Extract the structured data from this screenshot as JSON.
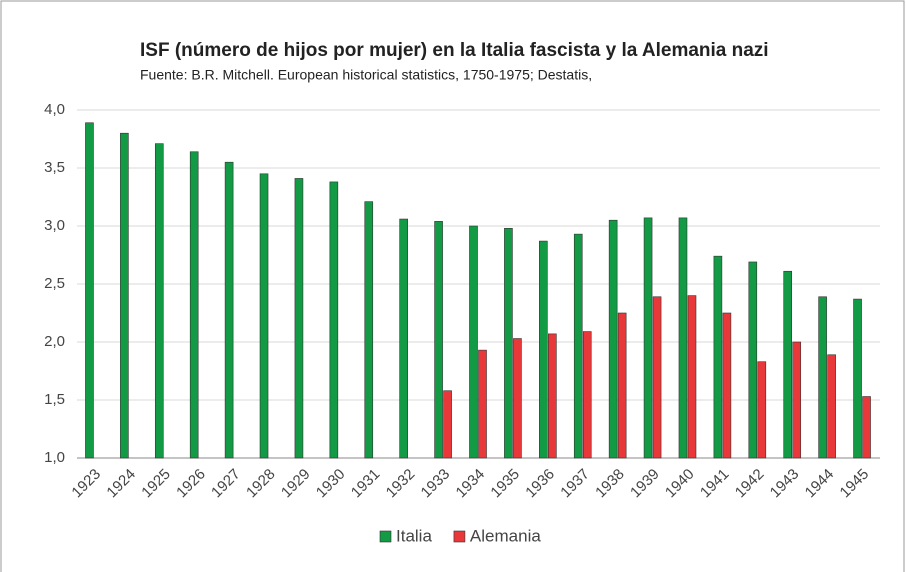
{
  "chart_data": {
    "type": "bar",
    "title": "ISF (número de hijos por mujer) en la Italia fascista y la Alemania nazi",
    "subtitle": "Fuente:  B.R. Mitchell. European historical statistics, 1750-1975; Destatis,",
    "categories": [
      "1923",
      "1924",
      "1925",
      "1926",
      "1927",
      "1928",
      "1929",
      "1930",
      "1931",
      "1932",
      "1933",
      "1934",
      "1935",
      "1936",
      "1937",
      "1938",
      "1939",
      "1940",
      "1941",
      "1942",
      "1943",
      "1944",
      "1945"
    ],
    "series": [
      {
        "name": "Italia",
        "color": "#129a44",
        "values": [
          3.89,
          3.8,
          3.71,
          3.64,
          3.55,
          3.45,
          3.41,
          3.38,
          3.21,
          3.06,
          3.04,
          3.0,
          2.98,
          2.87,
          2.93,
          3.05,
          3.07,
          3.07,
          2.74,
          2.69,
          2.61,
          2.39,
          2.37
        ]
      },
      {
        "name": "Alemania",
        "color": "#e8383a",
        "values": [
          null,
          null,
          null,
          null,
          null,
          null,
          null,
          null,
          null,
          null,
          1.58,
          1.93,
          2.03,
          2.07,
          2.09,
          2.25,
          2.39,
          2.4,
          2.25,
          1.83,
          2.0,
          1.89,
          1.53
        ]
      }
    ],
    "ylim": [
      1.0,
      4.0
    ],
    "yticks": [
      {
        "value": 1.0,
        "label": "1,0"
      },
      {
        "value": 1.5,
        "label": "1,5"
      },
      {
        "value": 2.0,
        "label": "2,0"
      },
      {
        "value": 2.5,
        "label": "2,5"
      },
      {
        "value": 3.0,
        "label": "3,0"
      },
      {
        "value": 3.5,
        "label": "3,5"
      },
      {
        "value": 4.0,
        "label": "4,0"
      }
    ],
    "grid": true,
    "legend": "bottom"
  }
}
